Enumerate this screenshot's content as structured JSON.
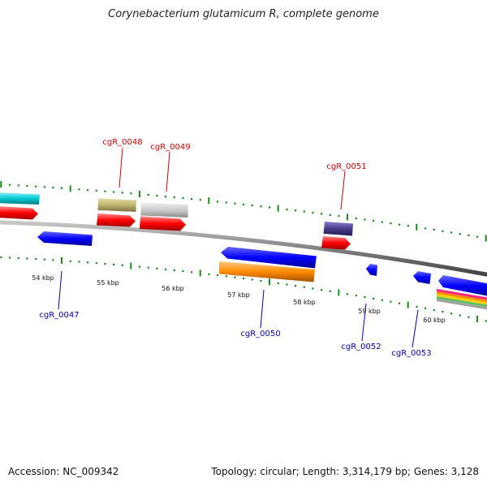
{
  "title": "Corynebacterium glutamicum R, complete genome",
  "accession": "Accession: NC_009342",
  "summary": "Topology: circular; Length: 3,314,179 bp; Genes: 3,128",
  "colors": {
    "backbone": "#808080",
    "tick": "#1a8a1a",
    "forward_label": "#cc0000",
    "reverse_label": "#0000aa",
    "cyan": "#00c8d2",
    "red": "#ff0000",
    "khaki": "#bdb46e",
    "silver": "#c8c8c8",
    "purple": "#483c8c",
    "blue": "#0000ff",
    "orange": "#ff8c00"
  },
  "scale_labels": [
    "54 kbp",
    "55 kbp",
    "56 kbp",
    "57 kbp",
    "58 kbp",
    "59 kbp",
    "60 kbp"
  ],
  "forward_genes": [
    {
      "name": "cgR_0048",
      "start_kbp": 55.14,
      "end_kbp": 55.73
    },
    {
      "name": "cgR_0049",
      "start_kbp": 55.85,
      "end_kbp": 56.56
    },
    {
      "name": "cgR_0051",
      "start_kbp": 58.31,
      "end_kbp": 58.76
    }
  ],
  "reverse_genes": [
    {
      "name": "cgR_0047",
      "start_kbp": 53.94,
      "end_kbp": 54.72
    },
    {
      "name": "cgR_0050",
      "start_kbp": 57.0,
      "end_kbp": 58.44
    },
    {
      "name": "cgR_0052",
      "start_kbp": 59.0,
      "end_kbp": 59.18
    },
    {
      "name": "cgR_0053",
      "start_kbp": 59.7,
      "end_kbp": 59.98
    }
  ]
}
